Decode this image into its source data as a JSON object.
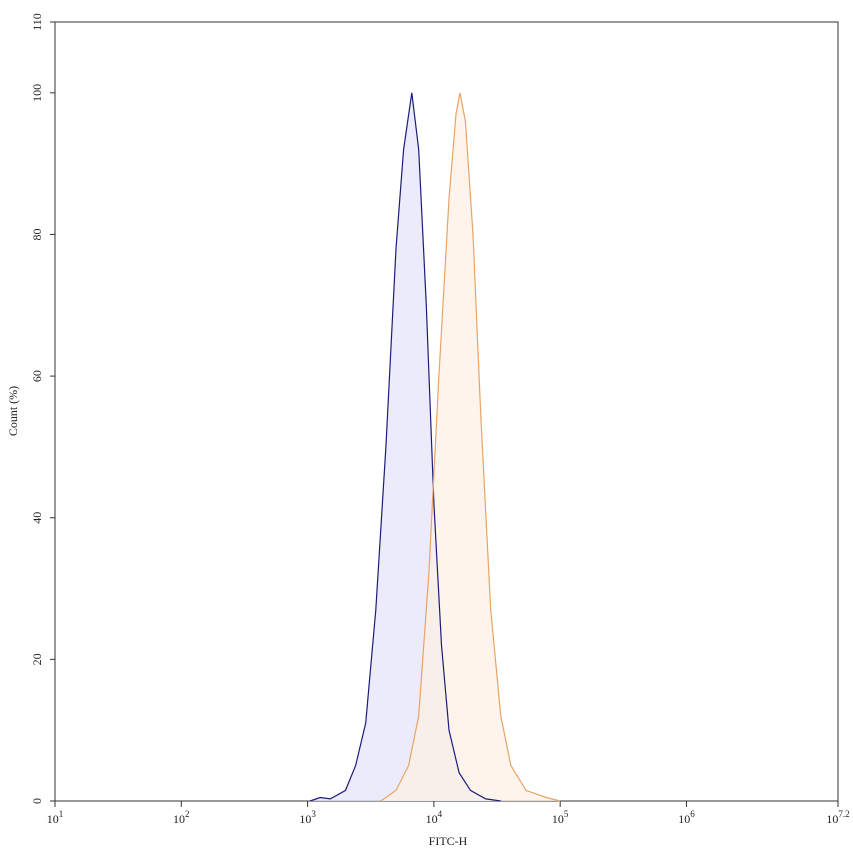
{
  "chart_data": {
    "type": "histogram-overlay",
    "x_label": "FITC-H",
    "y_label": "Count (%)",
    "xscale": "log",
    "xlim": [
      10,
      15848932
    ],
    "xticks": [
      {
        "value": 10,
        "label": "10",
        "exponent": "1"
      },
      {
        "value": 100,
        "label": "10",
        "exponent": "2"
      },
      {
        "value": 1000,
        "label": "10",
        "exponent": "3"
      },
      {
        "value": 10000,
        "label": "10",
        "exponent": "4"
      },
      {
        "value": 100000,
        "label": "10",
        "exponent": "5"
      },
      {
        "value": 1000000,
        "label": "10",
        "exponent": "6"
      },
      {
        "value": 15848932,
        "label": "10",
        "exponent": "7.2"
      }
    ],
    "ylim": [
      0,
      110
    ],
    "yticks": [
      0,
      20,
      40,
      60,
      80,
      100,
      110
    ],
    "series": [
      {
        "color": "#1c1c7a",
        "fill": "#e4e4fa",
        "x": [
          1047,
          1259,
          1514,
          1995,
          2399,
          2884,
          3467,
          4169,
          5012,
          5754,
          6683,
          7586,
          8710,
          10000,
          11482,
          13183,
          15849,
          19498,
          25704,
          33884
        ],
        "values": [
          0,
          0.5,
          0.3,
          1.5,
          5,
          11,
          27,
          50,
          78,
          92,
          100,
          92,
          70,
          42,
          22,
          10,
          4,
          1.5,
          0.3,
          0
        ]
      },
      {
        "color": "#e8a466",
        "fill": "#fdf0e4",
        "x": [
          3802,
          5012,
          6310,
          7586,
          9120,
          10965,
          13183,
          14962,
          16070,
          17783,
          20417,
          23442,
          28184,
          33884,
          40738,
          53703,
          77625,
          100000
        ],
        "values": [
          0,
          1.5,
          5,
          12,
          32,
          60,
          85,
          97,
          100,
          96,
          80,
          55,
          27,
          12,
          5,
          1.5,
          0.5,
          0
        ]
      }
    ]
  }
}
